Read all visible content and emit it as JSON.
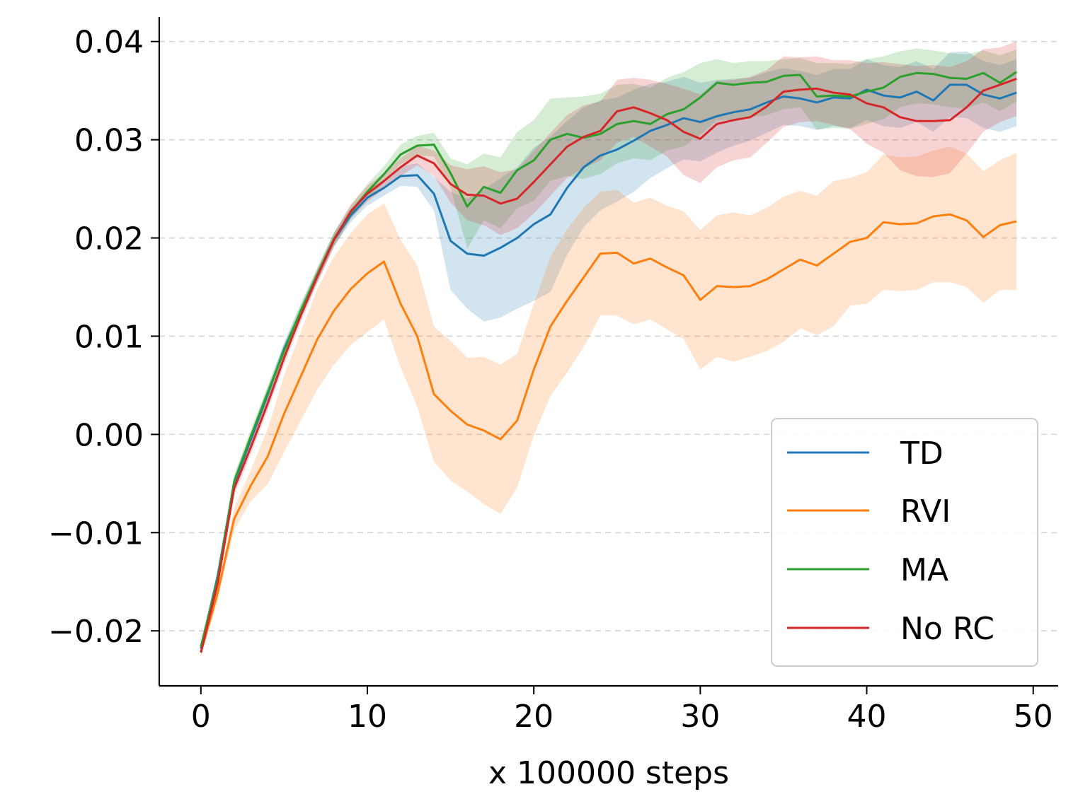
{
  "chart_data": {
    "type": "line",
    "title": "",
    "xlabel": "x 100000 steps",
    "ylabel": "",
    "xlim": [
      -2.5,
      51.5
    ],
    "ylim": [
      -0.0256,
      0.0425
    ],
    "xticks": [
      0,
      10,
      20,
      30,
      40,
      50
    ],
    "xtick_labels": [
      "0",
      "10",
      "20",
      "30",
      "40",
      "50"
    ],
    "yticks": [
      -0.02,
      -0.01,
      0.0,
      0.01,
      0.02,
      0.03,
      0.04
    ],
    "ytick_labels": [
      "−0.02",
      "−0.01",
      "0.00",
      "0.01",
      "0.02",
      "0.03",
      "0.04"
    ],
    "grid": "horizontal dashed",
    "legend_position": "lower-right",
    "x": [
      0,
      1,
      2,
      3,
      4,
      5,
      6,
      7,
      8,
      9,
      10,
      11,
      12,
      13,
      14,
      15,
      16,
      17,
      18,
      19,
      20,
      21,
      22,
      23,
      24,
      25,
      26,
      27,
      28,
      29,
      30,
      31,
      32,
      33,
      34,
      35,
      36,
      37,
      38,
      39,
      40,
      41,
      42,
      43,
      44,
      45,
      46,
      47,
      48,
      49
    ],
    "series": [
      {
        "name": "TD",
        "color": "#1f77b4",
        "values": [
          -0.0218,
          -0.0145,
          -0.005,
          -0.0005,
          0.004,
          0.0087,
          0.0125,
          0.0162,
          0.0198,
          0.0223,
          0.0241,
          0.0251,
          0.0263,
          0.0264,
          0.0245,
          0.0197,
          0.0184,
          0.0182,
          0.019,
          0.02,
          0.0214,
          0.0224,
          0.0251,
          0.0272,
          0.0284,
          0.029,
          0.0299,
          0.0309,
          0.0315,
          0.0322,
          0.0318,
          0.0324,
          0.0328,
          0.0331,
          0.0338,
          0.0344,
          0.0342,
          0.0338,
          0.0343,
          0.0342,
          0.0351,
          0.0345,
          0.0343,
          0.0349,
          0.034,
          0.0356,
          0.0356,
          0.0346,
          0.0342,
          0.0348
        ],
        "lower": [
          -0.0222,
          -0.0152,
          -0.0057,
          -0.0012,
          0.0033,
          0.008,
          0.0118,
          0.0155,
          0.0191,
          0.0216,
          0.0233,
          0.0243,
          0.0253,
          0.0252,
          0.0228,
          0.0147,
          0.0128,
          0.0115,
          0.0119,
          0.0128,
          0.0136,
          0.0145,
          0.0183,
          0.0211,
          0.0228,
          0.0237,
          0.0247,
          0.0261,
          0.0271,
          0.028,
          0.0278,
          0.0287,
          0.0294,
          0.0299,
          0.0307,
          0.0315,
          0.0314,
          0.031,
          0.0314,
          0.0312,
          0.032,
          0.0314,
          0.0312,
          0.0318,
          0.0308,
          0.0323,
          0.0322,
          0.0312,
          0.0308,
          0.0314
        ],
        "upper": [
          -0.0214,
          -0.0138,
          -0.0043,
          0.0002,
          0.0047,
          0.0094,
          0.0132,
          0.0169,
          0.0205,
          0.023,
          0.0249,
          0.0259,
          0.0273,
          0.0276,
          0.0262,
          0.0247,
          0.024,
          0.0249,
          0.0261,
          0.0272,
          0.0292,
          0.0303,
          0.0319,
          0.0333,
          0.034,
          0.0343,
          0.0351,
          0.0357,
          0.0359,
          0.0364,
          0.0358,
          0.0361,
          0.0362,
          0.0363,
          0.0369,
          0.0373,
          0.037,
          0.0366,
          0.0372,
          0.0372,
          0.0382,
          0.0376,
          0.0374,
          0.038,
          0.0372,
          0.0389,
          0.039,
          0.038,
          0.0376,
          0.0382
        ]
      },
      {
        "name": "RVI",
        "color": "#ff7f0e",
        "values": [
          -0.0222,
          -0.0162,
          -0.0086,
          -0.0052,
          -0.0023,
          0.0021,
          0.0059,
          0.0097,
          0.0126,
          0.0148,
          0.0164,
          0.0176,
          0.0133,
          0.01,
          0.0041,
          0.0024,
          0.001,
          0.0004,
          -0.0005,
          0.0014,
          0.0066,
          0.011,
          0.0136,
          0.016,
          0.0184,
          0.0185,
          0.0174,
          0.0179,
          0.017,
          0.0162,
          0.0137,
          0.0151,
          0.015,
          0.0151,
          0.0158,
          0.0168,
          0.0178,
          0.0172,
          0.0184,
          0.0196,
          0.02,
          0.0216,
          0.0214,
          0.0215,
          0.0222,
          0.0224,
          0.0218,
          0.0201,
          0.0213,
          0.0217
        ],
        "lower": [
          -0.0226,
          -0.017,
          -0.0097,
          -0.0068,
          -0.0051,
          -0.0018,
          0.0014,
          0.0046,
          0.0071,
          0.0091,
          0.0104,
          0.0117,
          0.0068,
          0.0028,
          -0.0028,
          -0.0047,
          -0.0058,
          -0.0071,
          -0.0081,
          -0.0054,
          -0.0001,
          0.0039,
          0.0063,
          0.0089,
          0.0121,
          0.0121,
          0.0112,
          0.0117,
          0.0107,
          0.0097,
          0.0066,
          0.0079,
          0.0074,
          0.0079,
          0.0085,
          0.0094,
          0.0108,
          0.0101,
          0.011,
          0.0131,
          0.0133,
          0.0147,
          0.0146,
          0.0147,
          0.0155,
          0.0155,
          0.015,
          0.0134,
          0.0147,
          0.0147
        ],
        "upper": [
          -0.0218,
          -0.0154,
          -0.0075,
          -0.0036,
          0.0005,
          0.006,
          0.0104,
          0.0148,
          0.0181,
          0.0205,
          0.0224,
          0.0235,
          0.0198,
          0.0172,
          0.011,
          0.0095,
          0.0078,
          0.0079,
          0.0071,
          0.0082,
          0.0133,
          0.0181,
          0.0209,
          0.0231,
          0.0247,
          0.0249,
          0.0236,
          0.0241,
          0.0233,
          0.0227,
          0.0208,
          0.0223,
          0.0226,
          0.0223,
          0.0231,
          0.0242,
          0.0248,
          0.0243,
          0.0258,
          0.0261,
          0.0267,
          0.0285,
          0.0282,
          0.0283,
          0.0289,
          0.0293,
          0.0286,
          0.0268,
          0.0279,
          0.0287
        ]
      },
      {
        "name": "MA",
        "color": "#2ca02c",
        "values": [
          -0.0216,
          -0.0148,
          -0.0048,
          -0.0002,
          0.0042,
          0.0085,
          0.0126,
          0.0163,
          0.0199,
          0.0226,
          0.0247,
          0.0265,
          0.0285,
          0.0294,
          0.0295,
          0.0266,
          0.0232,
          0.0252,
          0.0246,
          0.0269,
          0.0279,
          0.03,
          0.0306,
          0.0302,
          0.0306,
          0.0316,
          0.0319,
          0.0316,
          0.0326,
          0.0331,
          0.0343,
          0.0358,
          0.0356,
          0.0358,
          0.0359,
          0.0365,
          0.0366,
          0.0344,
          0.0345,
          0.0344,
          0.0349,
          0.0353,
          0.0364,
          0.0368,
          0.0367,
          0.0363,
          0.0362,
          0.0368,
          0.0358,
          0.0369
        ],
        "lower": [
          -0.022,
          -0.0155,
          -0.0055,
          -0.0009,
          0.0035,
          0.0078,
          0.0119,
          0.0156,
          0.0192,
          0.0219,
          0.0239,
          0.0257,
          0.0275,
          0.0284,
          0.0283,
          0.0251,
          0.0189,
          0.0218,
          0.021,
          0.023,
          0.0238,
          0.0258,
          0.0263,
          0.026,
          0.0265,
          0.0276,
          0.0281,
          0.0279,
          0.0289,
          0.0293,
          0.0305,
          0.032,
          0.032,
          0.0323,
          0.0325,
          0.0331,
          0.0333,
          0.031,
          0.0312,
          0.0311,
          0.0316,
          0.0321,
          0.0333,
          0.0337,
          0.0336,
          0.0333,
          0.0332,
          0.0338,
          0.0329,
          0.0339
        ],
        "upper": [
          -0.0212,
          -0.0141,
          -0.0041,
          0.0005,
          0.0049,
          0.0092,
          0.0133,
          0.017,
          0.0206,
          0.0233,
          0.0255,
          0.0273,
          0.0295,
          0.0304,
          0.0307,
          0.0281,
          0.0275,
          0.0286,
          0.0282,
          0.0308,
          0.032,
          0.0342,
          0.0343,
          0.0344,
          0.0347,
          0.0356,
          0.0357,
          0.0353,
          0.0363,
          0.0369,
          0.0378,
          0.0382,
          0.0378,
          0.038,
          0.038,
          0.0382,
          0.0383,
          0.0378,
          0.0378,
          0.0377,
          0.0382,
          0.0385,
          0.039,
          0.0393,
          0.0391,
          0.0388,
          0.0387,
          0.0391,
          0.0386,
          0.0392
        ]
      },
      {
        "name": "No RC",
        "color": "#d62728",
        "values": [
          -0.0222,
          -0.0152,
          -0.0055,
          -0.0013,
          0.0031,
          0.0078,
          0.0121,
          0.0161,
          0.0198,
          0.0227,
          0.0245,
          0.0258,
          0.0272,
          0.0284,
          0.0276,
          0.0255,
          0.0244,
          0.0243,
          0.0235,
          0.024,
          0.0257,
          0.0275,
          0.0293,
          0.0303,
          0.0309,
          0.0329,
          0.0333,
          0.0327,
          0.032,
          0.0308,
          0.0301,
          0.0316,
          0.032,
          0.0323,
          0.0334,
          0.0349,
          0.0351,
          0.0352,
          0.0348,
          0.0346,
          0.0337,
          0.0333,
          0.0323,
          0.0319,
          0.0319,
          0.032,
          0.0333,
          0.035,
          0.0356,
          0.0362
        ],
        "lower": [
          -0.0226,
          -0.0159,
          -0.0062,
          -0.002,
          0.0024,
          0.0071,
          0.0114,
          0.0154,
          0.0191,
          0.022,
          0.0237,
          0.025,
          0.0263,
          0.0274,
          0.0263,
          0.0236,
          0.0218,
          0.0213,
          0.0203,
          0.021,
          0.0225,
          0.0243,
          0.0261,
          0.0271,
          0.0279,
          0.0297,
          0.0303,
          0.0293,
          0.0283,
          0.0264,
          0.0256,
          0.0272,
          0.0279,
          0.0282,
          0.0297,
          0.0313,
          0.0318,
          0.0319,
          0.0315,
          0.0311,
          0.0296,
          0.0287,
          0.0269,
          0.0263,
          0.0262,
          0.0266,
          0.0286,
          0.0308,
          0.0318,
          0.0324
        ],
        "upper": [
          -0.0218,
          -0.0145,
          -0.0048,
          -0.0006,
          0.0038,
          0.0085,
          0.0128,
          0.0168,
          0.0205,
          0.0234,
          0.0253,
          0.0266,
          0.0281,
          0.0294,
          0.0289,
          0.0274,
          0.027,
          0.0273,
          0.0267,
          0.027,
          0.0289,
          0.0307,
          0.0325,
          0.0335,
          0.0339,
          0.0361,
          0.0363,
          0.0361,
          0.0357,
          0.0352,
          0.0346,
          0.036,
          0.0361,
          0.0364,
          0.0371,
          0.0385,
          0.0384,
          0.0385,
          0.0381,
          0.0381,
          0.0378,
          0.0379,
          0.0377,
          0.0375,
          0.0376,
          0.0374,
          0.038,
          0.0392,
          0.0394,
          0.04
        ]
      }
    ]
  }
}
